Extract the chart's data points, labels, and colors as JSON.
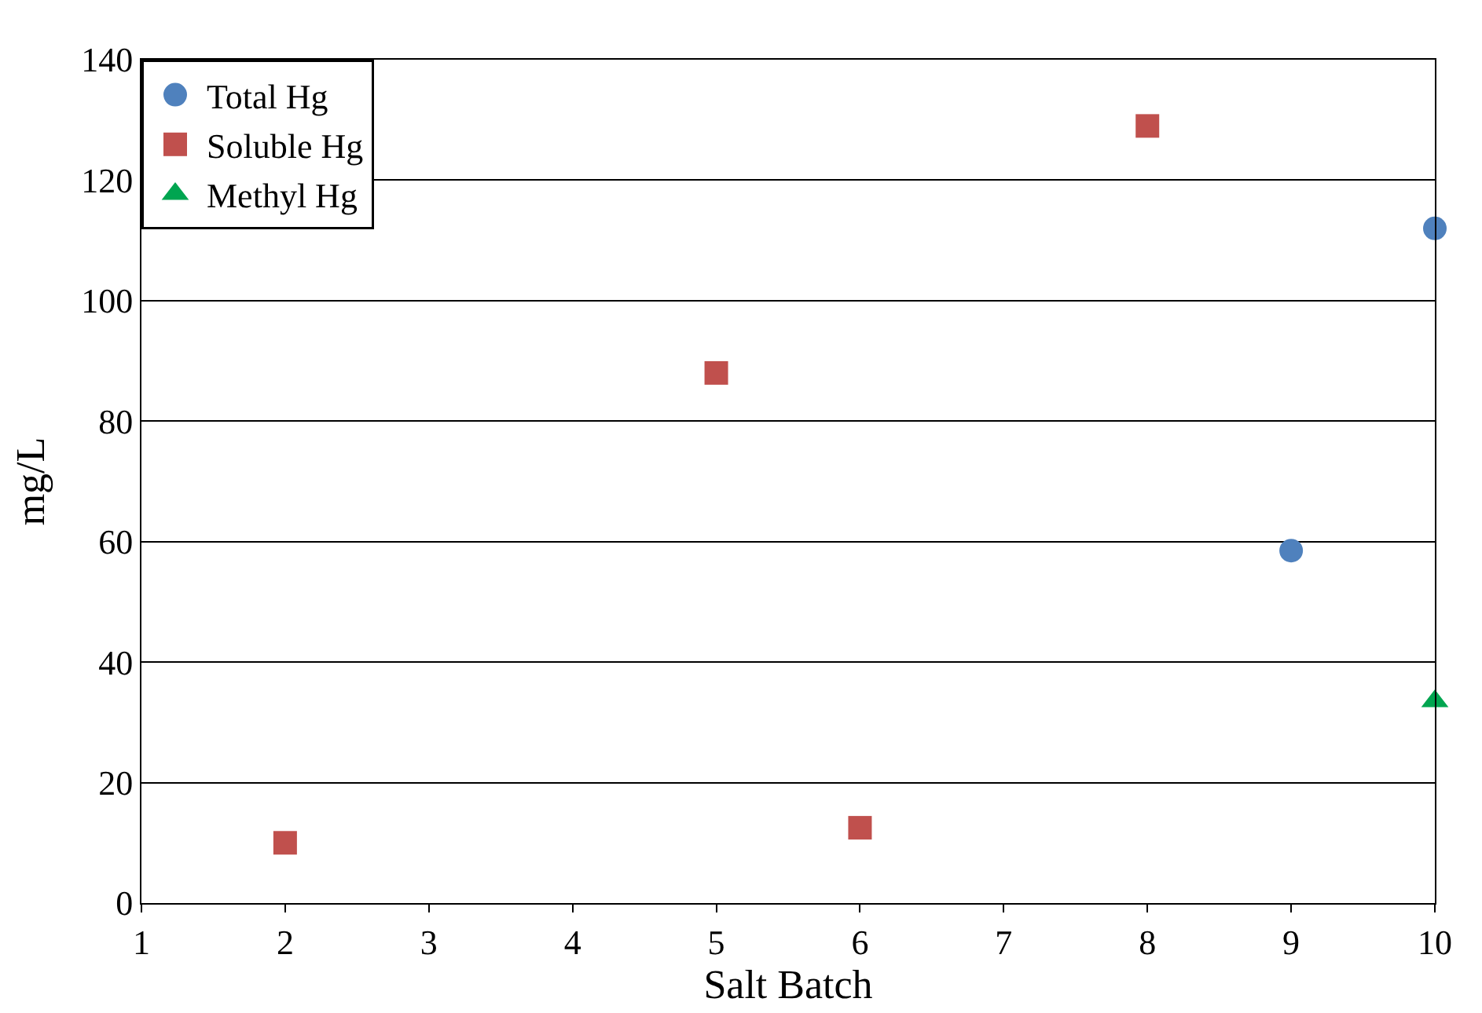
{
  "chart_data": {
    "type": "scatter",
    "xlabel": "Salt Batch",
    "ylabel": "mg/L",
    "series": [
      {
        "name": "Total Hg",
        "color": "#4f81bd",
        "marker": "circle",
        "x": [
          9,
          10
        ],
        "values": [
          58.5,
          112
        ]
      },
      {
        "name": "Soluble Hg",
        "color": "#c0504d",
        "marker": "square",
        "x": [
          2,
          5,
          6,
          8
        ],
        "values": [
          10,
          88,
          12.5,
          129
        ]
      },
      {
        "name": "Methyl Hg",
        "color": "#00a550",
        "marker": "triangle",
        "x": [
          10
        ],
        "values": [
          33.5
        ]
      }
    ],
    "xlim": [
      1,
      10
    ],
    "xticks": [
      1,
      2,
      3,
      4,
      5,
      6,
      7,
      8,
      9,
      10
    ],
    "ylim": [
      0,
      140
    ],
    "yticks": [
      0,
      20,
      40,
      60,
      80,
      100,
      120,
      140
    ],
    "grid": "y",
    "legend": "top left"
  }
}
